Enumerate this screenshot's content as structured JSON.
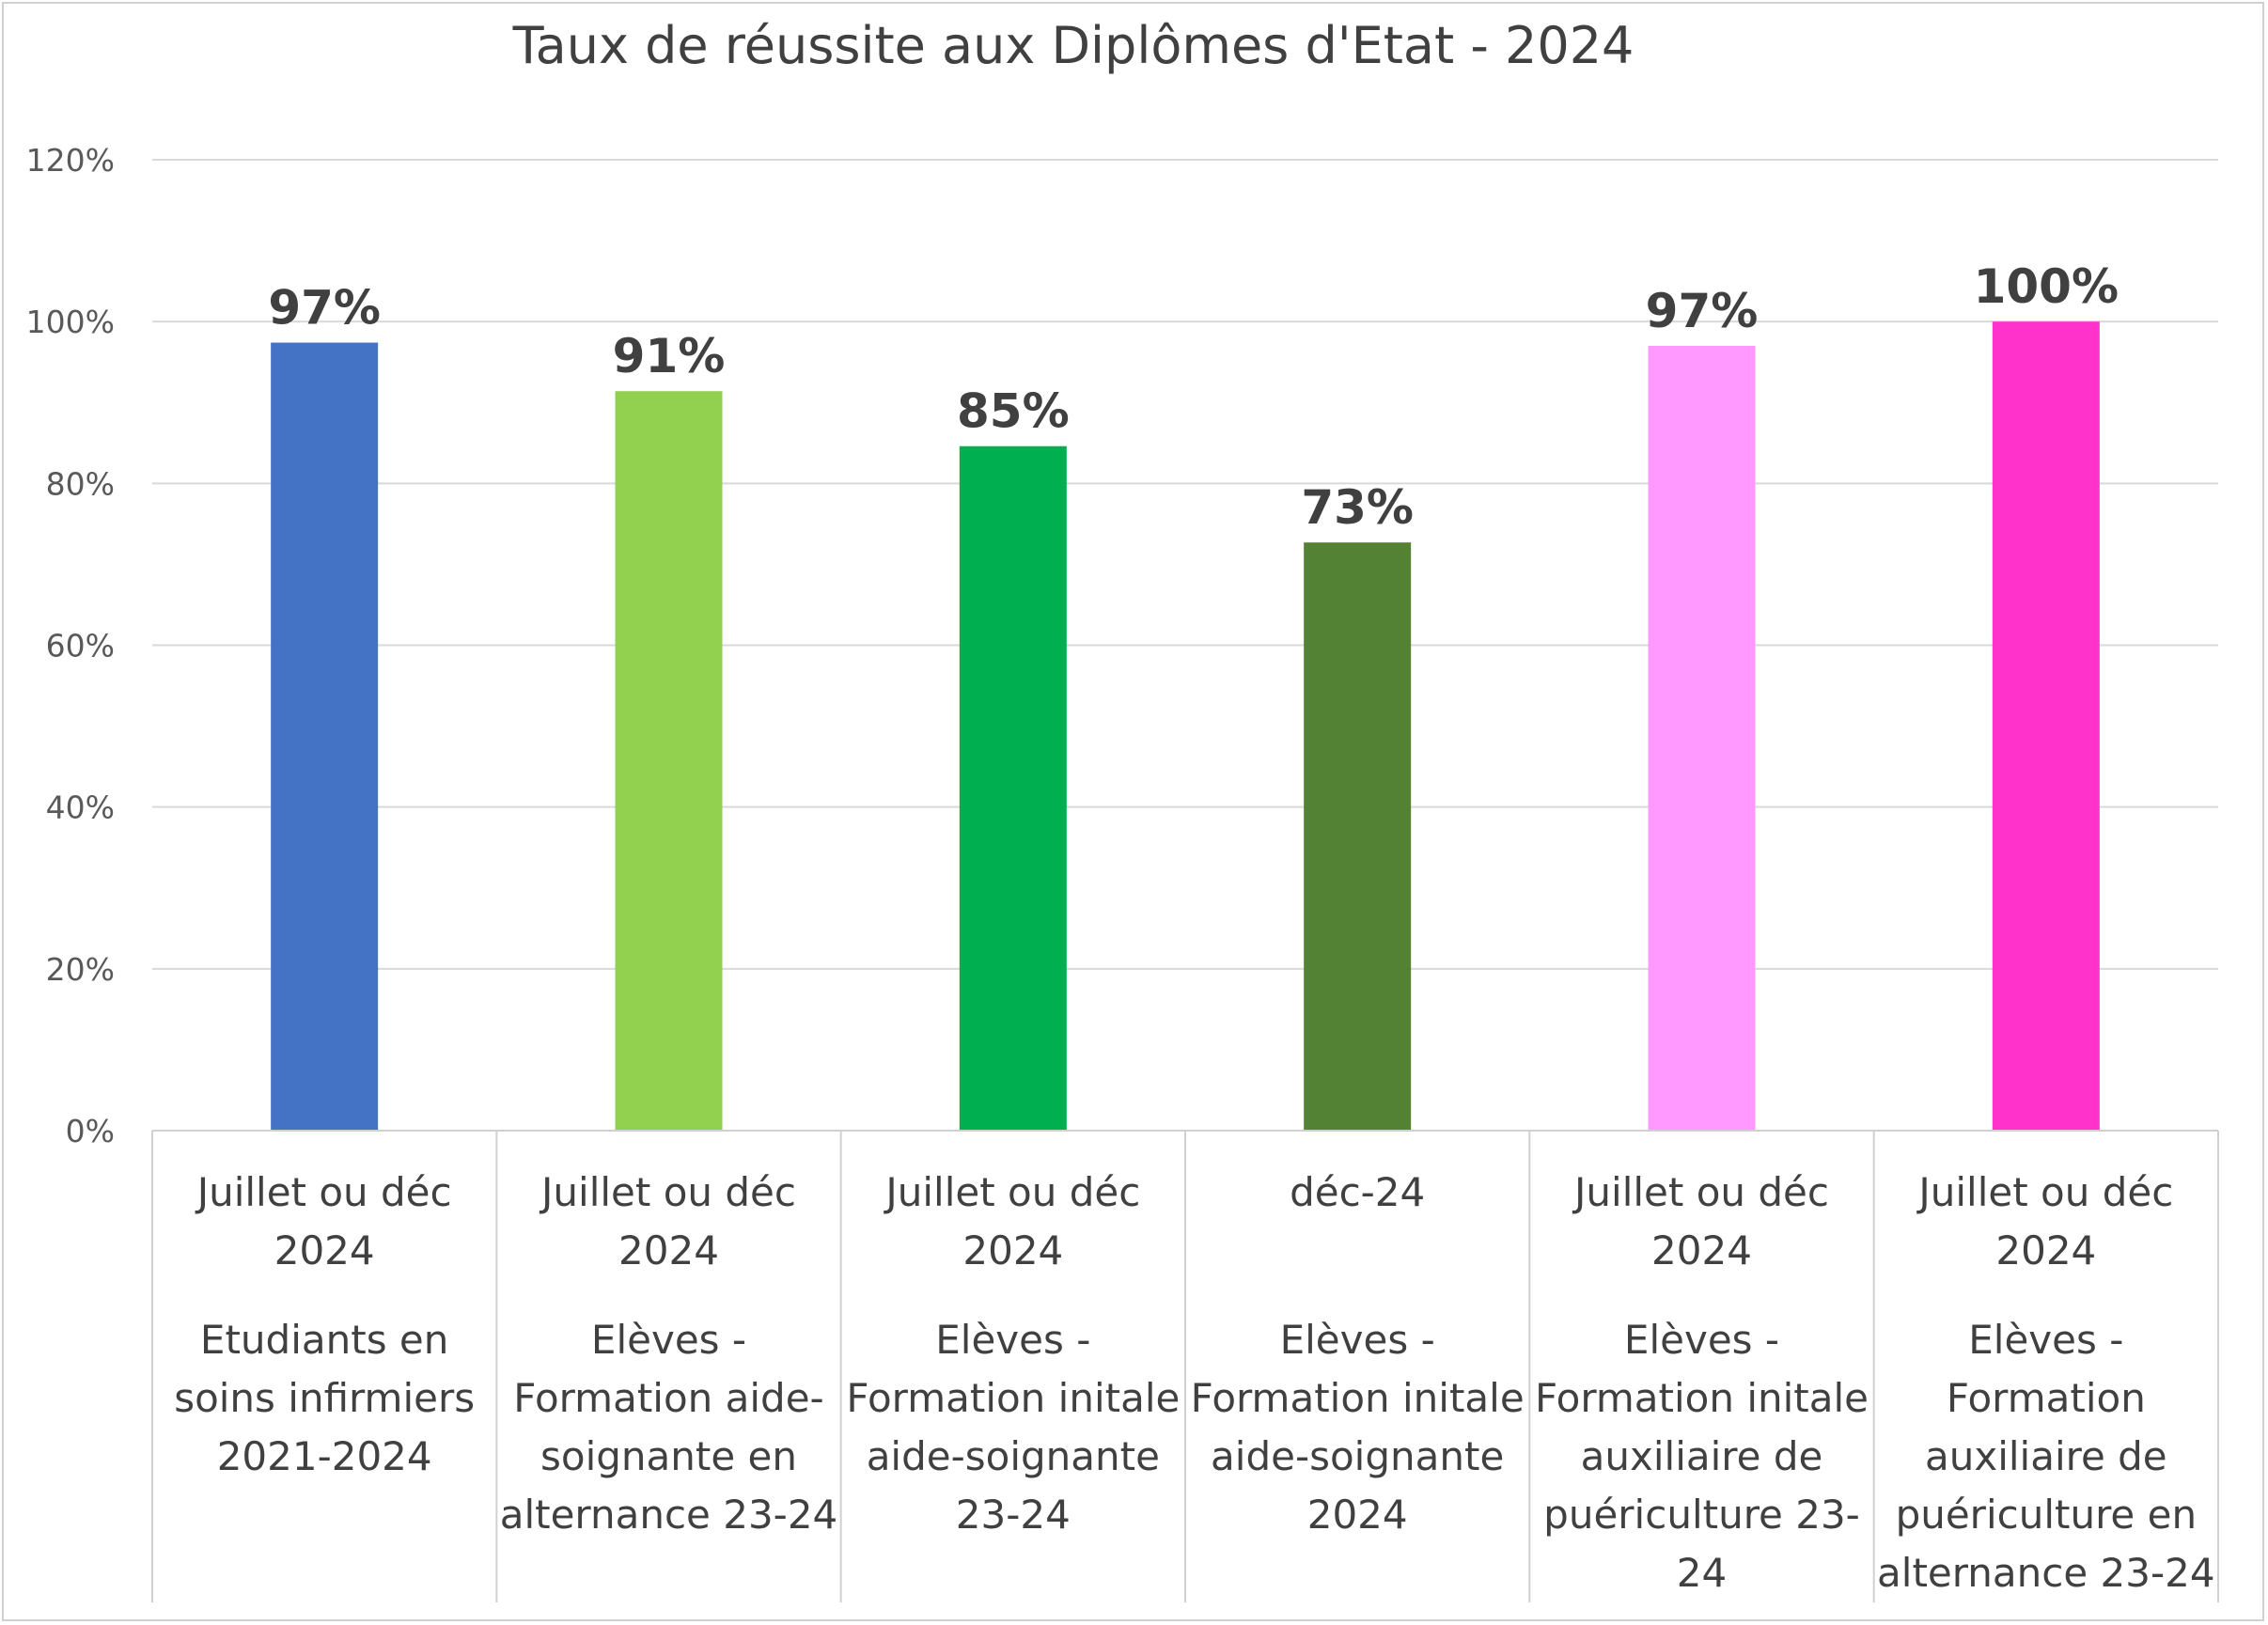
{
  "chart_data": {
    "type": "bar",
    "title": "Taux de réussite aux Diplômes d'Etat -  2024",
    "ylim": [
      0,
      1.2
    ],
    "yticks": [
      "0%",
      "20%",
      "40%",
      "60%",
      "80%",
      "100%",
      "120%"
    ],
    "grid": true,
    "legend": "none",
    "categories": [
      {
        "date_lines": [
          "Juillet ou déc",
          "2024"
        ],
        "group_lines": [
          "Etudiants en",
          "soins infirmiers",
          "2021-2024"
        ]
      },
      {
        "date_lines": [
          "Juillet ou déc",
          "2024"
        ],
        "group_lines": [
          "Elèves -",
          "Formation  aide-",
          "soignante en",
          "alternance 23-24"
        ]
      },
      {
        "date_lines": [
          "Juillet ou déc",
          "2024"
        ],
        "group_lines": [
          "Elèves -",
          "Formation initale",
          "aide-soignante",
          "23-24"
        ]
      },
      {
        "date_lines": [
          "déc-24"
        ],
        "group_lines": [
          "Elèves -",
          "Formation initale",
          "aide-soignante",
          "2024"
        ]
      },
      {
        "date_lines": [
          "Juillet ou déc",
          "2024"
        ],
        "group_lines": [
          "Elèves -",
          "Formation initale",
          "auxiliaire de",
          "puériculture 23-",
          "24"
        ]
      },
      {
        "date_lines": [
          "Juillet ou déc",
          "2024"
        ],
        "group_lines": [
          "Elèves -",
          "Formation",
          "auxiliaire de",
          "puériculture en",
          "alternance 23-24"
        ]
      }
    ],
    "values": [
      0.974,
      0.914,
      0.846,
      0.727,
      0.97,
      1.0
    ],
    "data_labels": [
      "97%",
      "91%",
      "85%",
      "73%",
      "97%",
      "100%"
    ],
    "colors": [
      "#4472C4",
      "#92D050",
      "#00B050",
      "#548235",
      "#FF99FF",
      "#FF33CC"
    ]
  }
}
